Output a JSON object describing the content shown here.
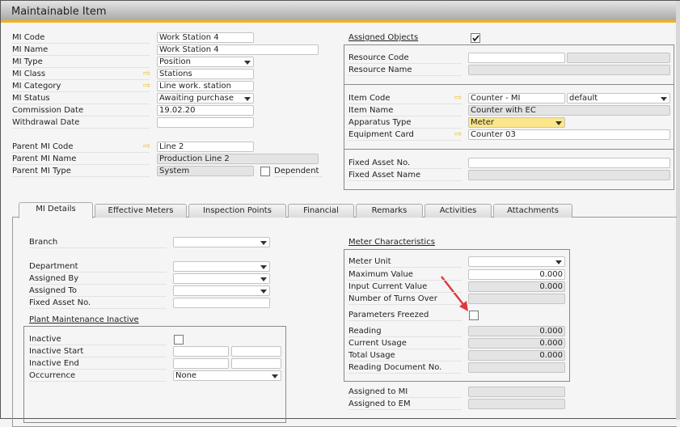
{
  "header": {
    "title": "Maintainable Item"
  },
  "general": [
    {
      "label": "MI Code",
      "value": "Work Station 4"
    },
    {
      "label": "MI Name",
      "value": "Work Station 4"
    },
    {
      "label": "MI Type",
      "value": "Position"
    },
    {
      "label": "MI Class",
      "value": "Stations"
    },
    {
      "label": "MI Category",
      "value": "Line work. station"
    },
    {
      "label": "MI Status",
      "value": "Awaiting purchase"
    },
    {
      "label": "Commission Date",
      "value": "19.02.20"
    },
    {
      "label": "Withdrawal Date",
      "value": ""
    },
    {
      "label": "Parent MI Code",
      "value": "Line 2"
    },
    {
      "label": "Parent MI Name",
      "value": "Production Line 2"
    },
    {
      "label": "Parent MI Type",
      "value": "System"
    }
  ],
  "dependent": {
    "label": "Dependent",
    "checked": false
  },
  "assigned_objects": {
    "label": "Assigned Objects",
    "checked": true,
    "rows": [
      {
        "label": "Resource Code",
        "value": "",
        "value2": ""
      },
      {
        "label": "Resource Name",
        "value": ""
      },
      {
        "label": "Item Code",
        "value": "Counter - MI",
        "value2": "default"
      },
      {
        "label": "Item Name",
        "value": "Counter with EC"
      },
      {
        "label": "Apparatus Type",
        "value": "Meter"
      },
      {
        "label": "Equipment Card",
        "value": "Counter 03"
      },
      {
        "label": "Fixed Asset No.",
        "value": ""
      },
      {
        "label": "Fixed Asset Name",
        "value": ""
      }
    ]
  },
  "tabs": [
    {
      "label": "MI Details",
      "active": true
    },
    {
      "label": "Effective Meters"
    },
    {
      "label": "Inspection Points"
    },
    {
      "label": "Financial"
    },
    {
      "label": "Remarks"
    },
    {
      "label": "Activities"
    },
    {
      "label": "Attachments"
    }
  ],
  "details": [
    {
      "label": "Branch",
      "value": ""
    },
    {
      "label": "Department",
      "value": ""
    },
    {
      "label": "Assigned By",
      "value": ""
    },
    {
      "label": "Assigned To",
      "value": ""
    },
    {
      "label": "Fixed Asset No.",
      "value": ""
    }
  ],
  "inactive": {
    "title": "Plant Maintenance Inactive",
    "rows": [
      {
        "label": "Inactive",
        "checked": false
      },
      {
        "label": "Inactive Start",
        "value": "",
        "value2": ""
      },
      {
        "label": "Inactive End",
        "value": "",
        "value2": ""
      },
      {
        "label": "Occurrence",
        "value": "None"
      }
    ]
  },
  "meter": {
    "title": "Meter Characteristics",
    "rows": [
      {
        "label": "Meter Unit",
        "value": ""
      },
      {
        "label": "Maximum Value",
        "value": "0.000"
      },
      {
        "label": "Input Current Value",
        "value": "0.000"
      },
      {
        "label": "Number of Turns Over",
        "value": ""
      },
      {
        "label": "Parameters Freezed",
        "checked": false
      },
      {
        "label": "Reading",
        "value": "0.000"
      },
      {
        "label": "Current Usage",
        "value": "0.000"
      },
      {
        "label": "Total Usage",
        "value": "0.000"
      },
      {
        "label": "Reading Document No.",
        "value": ""
      },
      {
        "label": "Assigned to MI",
        "value": ""
      },
      {
        "label": "Assigned to EM",
        "value": ""
      }
    ]
  },
  "colors": {
    "accent": "#f0b31c",
    "highlight": "#fbe68a",
    "annotation_arrow": "#e0393e"
  }
}
